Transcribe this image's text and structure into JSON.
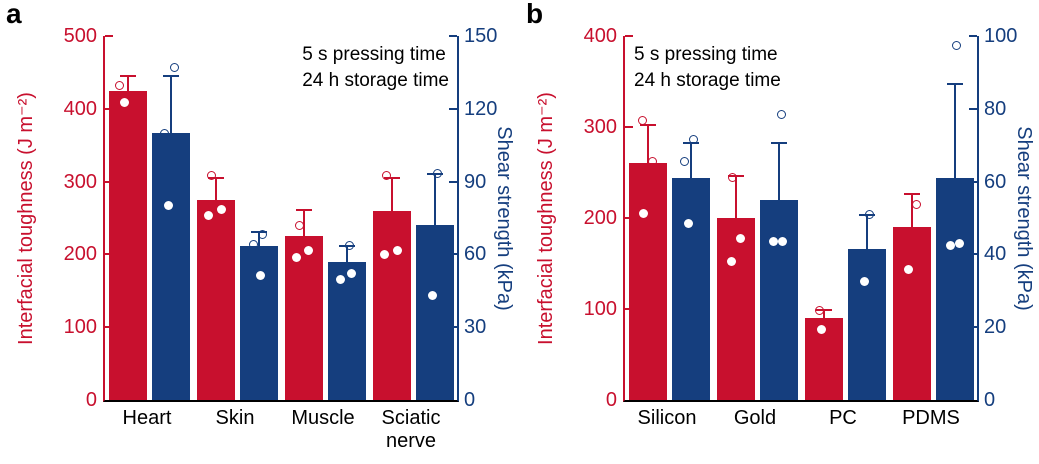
{
  "figure": {
    "background": "#ffffff"
  },
  "chart_data": [
    {
      "type": "bar",
      "panel_label": "a",
      "categories": [
        "Heart",
        "Skin",
        "Muscle",
        "Sciatic nerve"
      ],
      "left_axis": {
        "label": "Interfacial toughness (J m⁻²)",
        "range": [
          0,
          500
        ],
        "ticks": [
          0,
          100,
          200,
          300,
          400,
          500
        ],
        "color": "#c8102e"
      },
      "right_axis": {
        "label": "Shear strength (kPa)",
        "range": [
          0,
          150
        ],
        "ticks": [
          0,
          30,
          60,
          90,
          120,
          150
        ],
        "color": "#153e7e"
      },
      "annotation": {
        "lines": [
          "5 s pressing time",
          "24 h storage time"
        ],
        "side": "right"
      },
      "legend": "off",
      "grid": "off",
      "series": [
        {
          "name": "Interfacial toughness",
          "axis": "left",
          "color": "#c8102e",
          "values": [
            425,
            275,
            225,
            260
          ],
          "errors": [
            22,
            32,
            37,
            47
          ],
          "points": [
            {
              "c": 0,
              "v": 432,
              "t": "o",
              "dx": -8
            },
            {
              "c": 0,
              "v": 408,
              "t": "f",
              "dx": -3
            },
            {
              "c": 1,
              "v": 308,
              "t": "o",
              "dx": -4
            },
            {
              "c": 1,
              "v": 253,
              "t": "f",
              "dx": -7
            },
            {
              "c": 1,
              "v": 262,
              "t": "f",
              "dx": 6
            },
            {
              "c": 2,
              "v": 240,
              "t": "o",
              "dx": -4
            },
            {
              "c": 2,
              "v": 196,
              "t": "f",
              "dx": -7
            },
            {
              "c": 2,
              "v": 206,
              "t": "f",
              "dx": 5
            },
            {
              "c": 3,
              "v": 308,
              "t": "o",
              "dx": -5
            },
            {
              "c": 3,
              "v": 200,
              "t": "f",
              "dx": -7
            },
            {
              "c": 3,
              "v": 205,
              "t": "f",
              "dx": 6
            }
          ]
        },
        {
          "name": "Shear strength",
          "axis": "right",
          "color": "#153e7e",
          "values": [
            110,
            63.5,
            57,
            72
          ],
          "errors": [
            24,
            6,
            7,
            21.5
          ],
          "points": [
            {
              "c": 0,
              "v": 137,
              "t": "o",
              "dx": 4
            },
            {
              "c": 0,
              "v": 110,
              "t": "o",
              "dx": -6
            },
            {
              "c": 0,
              "v": 80,
              "t": "f",
              "dx": -2
            },
            {
              "c": 1,
              "v": 68,
              "t": "o",
              "dx": 4
            },
            {
              "c": 1,
              "v": 64,
              "t": "o",
              "dx": -5
            },
            {
              "c": 1,
              "v": 51.5,
              "t": "f",
              "dx": 2
            },
            {
              "c": 2,
              "v": 63.5,
              "t": "o",
              "dx": 3
            },
            {
              "c": 2,
              "v": 49.5,
              "t": "f",
              "dx": -6
            },
            {
              "c": 2,
              "v": 52,
              "t": "f",
              "dx": 5
            },
            {
              "c": 3,
              "v": 93.5,
              "t": "o",
              "dx": 3
            },
            {
              "c": 3,
              "v": 43,
              "t": "f",
              "dx": -2
            }
          ]
        }
      ]
    },
    {
      "type": "bar",
      "panel_label": "b",
      "categories": [
        "Silicon",
        "Gold",
        "PC",
        "PDMS"
      ],
      "left_axis": {
        "label": "Interfacial toughness (J m⁻²)",
        "range": [
          0,
          400
        ],
        "ticks": [
          0,
          100,
          200,
          300,
          400
        ],
        "color": "#c8102e"
      },
      "right_axis": {
        "label": "Shear strength (kPa)",
        "range": [
          0,
          100
        ],
        "ticks": [
          0,
          20,
          40,
          60,
          80,
          100
        ],
        "color": "#153e7e"
      },
      "annotation": {
        "lines": [
          "5 s pressing time",
          "24 h storage time"
        ],
        "side": "left"
      },
      "legend": "off",
      "grid": "off",
      "series": [
        {
          "name": "Interfacial toughness",
          "axis": "left",
          "color": "#c8102e",
          "values": [
            260,
            200,
            90,
            190
          ],
          "errors": [
            43,
            47,
            10,
            38
          ],
          "points": [
            {
              "c": 0,
              "v": 307,
              "t": "o",
              "dx": -5
            },
            {
              "c": 0,
              "v": 262,
              "t": "o",
              "dx": 5
            },
            {
              "c": 0,
              "v": 205,
              "t": "f",
              "dx": -4
            },
            {
              "c": 1,
              "v": 245,
              "t": "o",
              "dx": -3
            },
            {
              "c": 1,
              "v": 152,
              "t": "f",
              "dx": -4
            },
            {
              "c": 1,
              "v": 178,
              "t": "f",
              "dx": 5
            },
            {
              "c": 2,
              "v": 98,
              "t": "o",
              "dx": -4
            },
            {
              "c": 2,
              "v": 78,
              "t": "f",
              "dx": -2
            },
            {
              "c": 3,
              "v": 215,
              "t": "o",
              "dx": 5
            },
            {
              "c": 3,
              "v": 143,
              "t": "f",
              "dx": -3
            }
          ]
        },
        {
          "name": "Shear strength",
          "axis": "right",
          "color": "#153e7e",
          "values": [
            61,
            55,
            41.5,
            61
          ],
          "errors": [
            10,
            16,
            9.5,
            26
          ],
          "points": [
            {
              "c": 0,
              "v": 71.5,
              "t": "o",
              "dx": 3
            },
            {
              "c": 0,
              "v": 65.5,
              "t": "o",
              "dx": -6
            },
            {
              "c": 0,
              "v": 48.5,
              "t": "f",
              "dx": -2
            },
            {
              "c": 1,
              "v": 78.5,
              "t": "o",
              "dx": 3
            },
            {
              "c": 1,
              "v": 43.5,
              "t": "f",
              "dx": -5
            },
            {
              "c": 1,
              "v": 43.5,
              "t": "f",
              "dx": 4
            },
            {
              "c": 2,
              "v": 51,
              "t": "o",
              "dx": 3
            },
            {
              "c": 2,
              "v": 32.5,
              "t": "f",
              "dx": -2
            },
            {
              "c": 3,
              "v": 97.5,
              "t": "o",
              "dx": 2
            },
            {
              "c": 3,
              "v": 42.5,
              "t": "f",
              "dx": -4
            },
            {
              "c": 3,
              "v": 43,
              "t": "f",
              "dx": 5
            }
          ]
        }
      ]
    }
  ]
}
